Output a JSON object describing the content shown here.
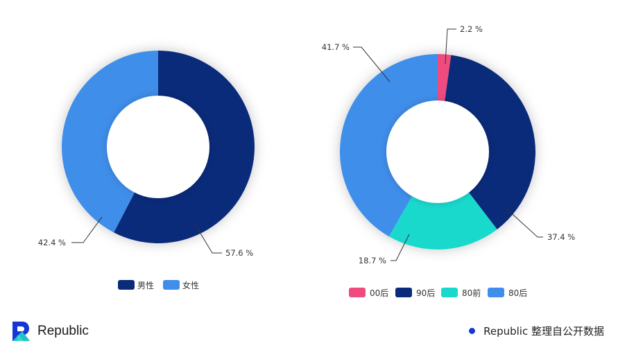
{
  "chart_data": [
    {
      "type": "pie",
      "slices": [
        {
          "label": "男性",
          "value": 57.6,
          "text": "57.6 %",
          "color": "#0a2a7a"
        },
        {
          "label": "女性",
          "value": 42.4,
          "text": "42.4 %",
          "color": "#3f8eea"
        }
      ],
      "legend": [
        "男性",
        "女性"
      ]
    },
    {
      "type": "pie",
      "slices": [
        {
          "label": "00后",
          "value": 2.2,
          "text": "2.2 %",
          "color": "#ef4b7f"
        },
        {
          "label": "90后",
          "value": 37.4,
          "text": "37.4 %",
          "color": "#0a2a7a"
        },
        {
          "label": "80前",
          "value": 18.7,
          "text": "18.7 %",
          "color": "#19d9cc"
        },
        {
          "label": "80后",
          "value": 41.7,
          "text": "41.7 %",
          "color": "#3f8eea"
        }
      ],
      "legend": [
        "00后",
        "90后",
        "80前",
        "80后"
      ]
    }
  ],
  "footer": {
    "brand_name": "Republic",
    "source_text": "Republic 整理自公开数据"
  }
}
